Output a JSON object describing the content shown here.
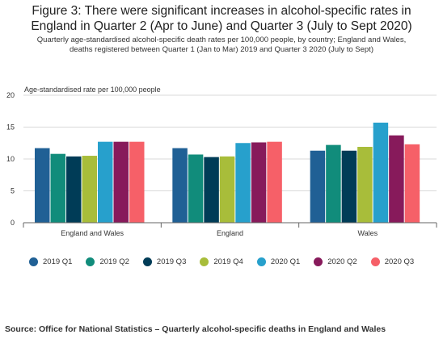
{
  "header": {
    "title_line1": "Figure 3: There were significant increases in alcohol-specific rates in",
    "title_line2": "England in Quarter 2 (Apr to June) and Quarter 3 (July to Sept 2020)",
    "subtitle_line1": "Quarterly age-standardised alcohol-specific death rates per 100,000 people, by country; England and Wales,",
    "subtitle_line2": "deaths registered between Quarter 1 (Jan to Mar) 2019 and Quarter 3 2020 (July to Sept)"
  },
  "chart_data": {
    "type": "bar",
    "ylabel": "Age-standardised rate per 100,000 people",
    "ylim": [
      0,
      20
    ],
    "yticks": [
      0,
      5,
      10,
      15,
      20
    ],
    "grid": true,
    "legend_position": "bottom",
    "categories": [
      "England and Wales",
      "England",
      "Wales"
    ],
    "series": [
      {
        "name": "2019 Q1",
        "color": "#206095",
        "values": [
          11.7,
          11.7,
          11.3
        ]
      },
      {
        "name": "2019 Q2",
        "color": "#118c7b",
        "values": [
          10.8,
          10.7,
          12.2
        ]
      },
      {
        "name": "2019 Q3",
        "color": "#003c57",
        "values": [
          10.4,
          10.3,
          11.3
        ]
      },
      {
        "name": "2019 Q4",
        "color": "#a8bd3a",
        "values": [
          10.5,
          10.4,
          11.9
        ]
      },
      {
        "name": "2020 Q1",
        "color": "#27a0cc",
        "values": [
          12.7,
          12.5,
          15.7
        ]
      },
      {
        "name": "2020 Q2",
        "color": "#871a5b",
        "values": [
          12.7,
          12.6,
          13.7
        ]
      },
      {
        "name": "2020 Q3",
        "color": "#f66068",
        "values": [
          12.7,
          12.7,
          12.3
        ]
      }
    ]
  },
  "source": "Source: Office for National Statistics – Quarterly alcohol-specific deaths in England and Wales"
}
